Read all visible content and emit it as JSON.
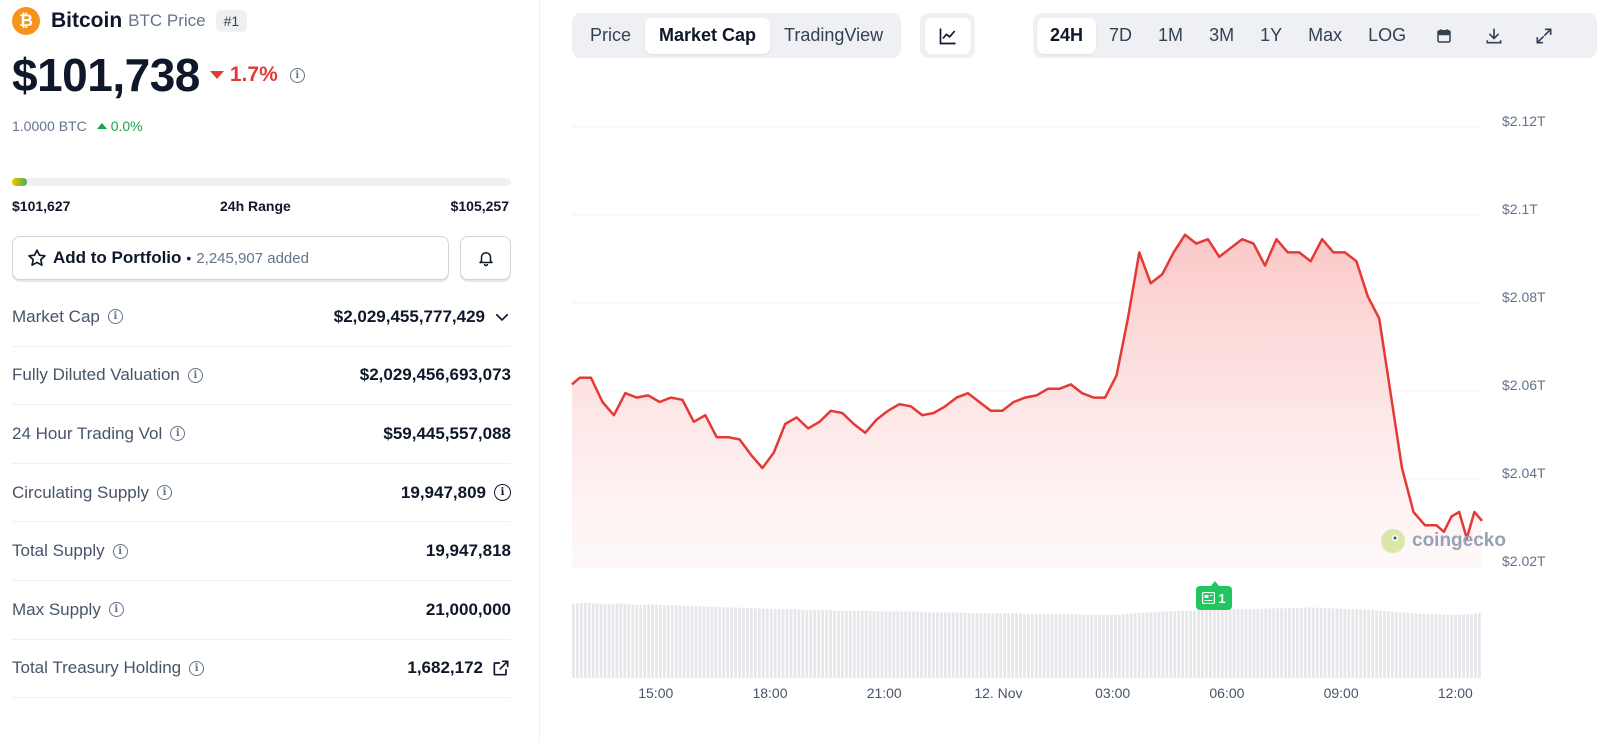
{
  "coin": {
    "logo_glyph": "₿",
    "name": "Bitcoin",
    "subtitle": "BTC Price",
    "rank": "#1",
    "price": "$101,738",
    "change_24h": "1.7%",
    "change_direction": "down",
    "btc_value": "1.0000 BTC",
    "btc_change": "0.0%"
  },
  "range_24h": {
    "low": "$101,627",
    "label": "24h Range",
    "high": "$105,257",
    "current_fraction": 0.03
  },
  "portfolio": {
    "label": "Add to Portfolio",
    "separator": "•",
    "added": "2,245,907 added"
  },
  "stats": [
    {
      "label": "Market Cap",
      "value": "$2,029,455,777,429",
      "extra": "chevron-down-icon"
    },
    {
      "label": "Fully Diluted Valuation",
      "value": "$2,029,456,693,073",
      "extra": ""
    },
    {
      "label": "24 Hour Trading Vol",
      "value": "$59,445,557,088",
      "extra": ""
    },
    {
      "label": "Circulating Supply",
      "value": "19,947,809",
      "extra": "info-icon"
    },
    {
      "label": "Total Supply",
      "value": "19,947,818",
      "extra": ""
    },
    {
      "label": "Max Supply",
      "value": "21,000,000",
      "extra": ""
    },
    {
      "label": "Total Treasury Holding",
      "value": "1,682,172",
      "extra": "external-link-icon"
    }
  ],
  "chart_tabs": [
    {
      "label": "Price",
      "active": false
    },
    {
      "label": "Market Cap",
      "active": true
    },
    {
      "label": "TradingView",
      "active": false
    }
  ],
  "time_ranges": [
    {
      "label": "24H",
      "active": true
    },
    {
      "label": "7D",
      "active": false
    },
    {
      "label": "1M",
      "active": false
    },
    {
      "label": "3M",
      "active": false
    },
    {
      "label": "1Y",
      "active": false
    },
    {
      "label": "Max",
      "active": false
    },
    {
      "label": "LOG",
      "active": false
    }
  ],
  "toolbar_icons": [
    "calendar-icon",
    "download-icon",
    "expand-icon"
  ],
  "watermark": "coingecko",
  "news_badge": "1",
  "colors": {
    "line": "#e53935",
    "area": "#fde2e2",
    "negative": "#e53935",
    "positive": "#16a34a",
    "volume": "#e5e7eb",
    "news": "#22c55e"
  },
  "chart_data": {
    "type": "area",
    "title": "",
    "xlabel": "",
    "ylabel": "",
    "ylim": [
      2.02,
      2.12
    ],
    "y_ticks": [
      2.02,
      2.04,
      2.06,
      2.08,
      2.1,
      2.12
    ],
    "y_tick_labels": [
      "$2.02T",
      "$2.04T",
      "$2.06T",
      "$2.08T",
      "$2.1T",
      "$2.12T"
    ],
    "x_tick_positions": [
      15,
      18,
      21,
      24,
      27,
      30,
      33,
      36
    ],
    "x_tick_labels": [
      "15:00",
      "18:00",
      "21:00",
      "12. Nov",
      "03:00",
      "06:00",
      "09:00",
      "12:00"
    ],
    "x_unit": "hours since 11 Nov 00:00",
    "x": [
      12.8,
      13.0,
      13.3,
      13.6,
      13.9,
      14.2,
      14.5,
      14.8,
      15.1,
      15.4,
      15.7,
      16.0,
      16.3,
      16.6,
      16.9,
      17.2,
      17.5,
      17.8,
      18.1,
      18.4,
      18.7,
      19.0,
      19.3,
      19.6,
      19.9,
      20.2,
      20.5,
      20.8,
      21.1,
      21.4,
      21.7,
      22.0,
      22.3,
      22.6,
      22.9,
      23.2,
      23.5,
      23.8,
      24.1,
      24.4,
      24.7,
      25.0,
      25.3,
      25.6,
      25.9,
      26.2,
      26.5,
      26.8,
      27.1,
      27.4,
      27.7,
      28.0,
      28.3,
      28.6,
      28.9,
      29.2,
      29.5,
      29.8,
      30.1,
      30.4,
      30.7,
      31.0,
      31.3,
      31.6,
      31.9,
      32.2,
      32.5,
      32.8,
      33.1,
      33.4,
      33.7,
      34.0,
      34.3,
      34.6,
      34.9,
      35.2,
      35.5,
      35.7,
      35.9,
      36.1,
      36.3,
      36.5,
      36.7
    ],
    "series": [
      {
        "values": [
          2.0615,
          2.063,
          2.063,
          2.0575,
          2.0545,
          2.0595,
          2.0585,
          2.059,
          2.0575,
          2.0585,
          2.058,
          2.053,
          2.0545,
          2.0495,
          2.0495,
          2.049,
          2.0455,
          2.0425,
          2.046,
          2.0525,
          2.054,
          2.0515,
          2.053,
          2.0555,
          2.055,
          2.0525,
          2.0505,
          2.0535,
          2.0555,
          2.057,
          2.0565,
          2.0545,
          2.055,
          2.0565,
          2.0585,
          2.0595,
          2.0575,
          2.0555,
          2.0555,
          2.0575,
          2.0585,
          2.059,
          2.0605,
          2.0605,
          2.0615,
          2.0595,
          2.0585,
          2.0585,
          2.0635,
          2.0765,
          2.0915,
          2.0845,
          2.0865,
          2.0915,
          2.0955,
          2.0935,
          2.0945,
          2.0905,
          2.0925,
          2.0945,
          2.0935,
          2.0885,
          2.0945,
          2.0915,
          2.0915,
          2.0895,
          2.0945,
          2.0915,
          2.0915,
          2.0895,
          2.0815,
          2.0765,
          2.0595,
          2.0425,
          2.0325,
          2.0295,
          2.0295,
          2.028,
          2.0315,
          2.0325,
          2.0265,
          2.0325,
          2.0305
        ]
      }
    ],
    "volume_levels": [
      0.92,
      0.93,
      0.92,
      0.91,
      0.92,
      0.91,
      0.9,
      0.91,
      0.9,
      0.9,
      0.89,
      0.89,
      0.88,
      0.88,
      0.87,
      0.87,
      0.86,
      0.86,
      0.85,
      0.85,
      0.85,
      0.84,
      0.84,
      0.84,
      0.83,
      0.83,
      0.83,
      0.83,
      0.82,
      0.82,
      0.82,
      0.82,
      0.81,
      0.81,
      0.81,
      0.81,
      0.8,
      0.8,
      0.8,
      0.8,
      0.8,
      0.79,
      0.79,
      0.79,
      0.79,
      0.79,
      0.78,
      0.78,
      0.78,
      0.78,
      0.79,
      0.8,
      0.81,
      0.82,
      0.82,
      0.83,
      0.83,
      0.84,
      0.84,
      0.84,
      0.85,
      0.85,
      0.85,
      0.86,
      0.86,
      0.86,
      0.87,
      0.87,
      0.86,
      0.86,
      0.85,
      0.85,
      0.84,
      0.83,
      0.82,
      0.81,
      0.8,
      0.79,
      0.79,
      0.78,
      0.78,
      0.79,
      0.8
    ]
  }
}
